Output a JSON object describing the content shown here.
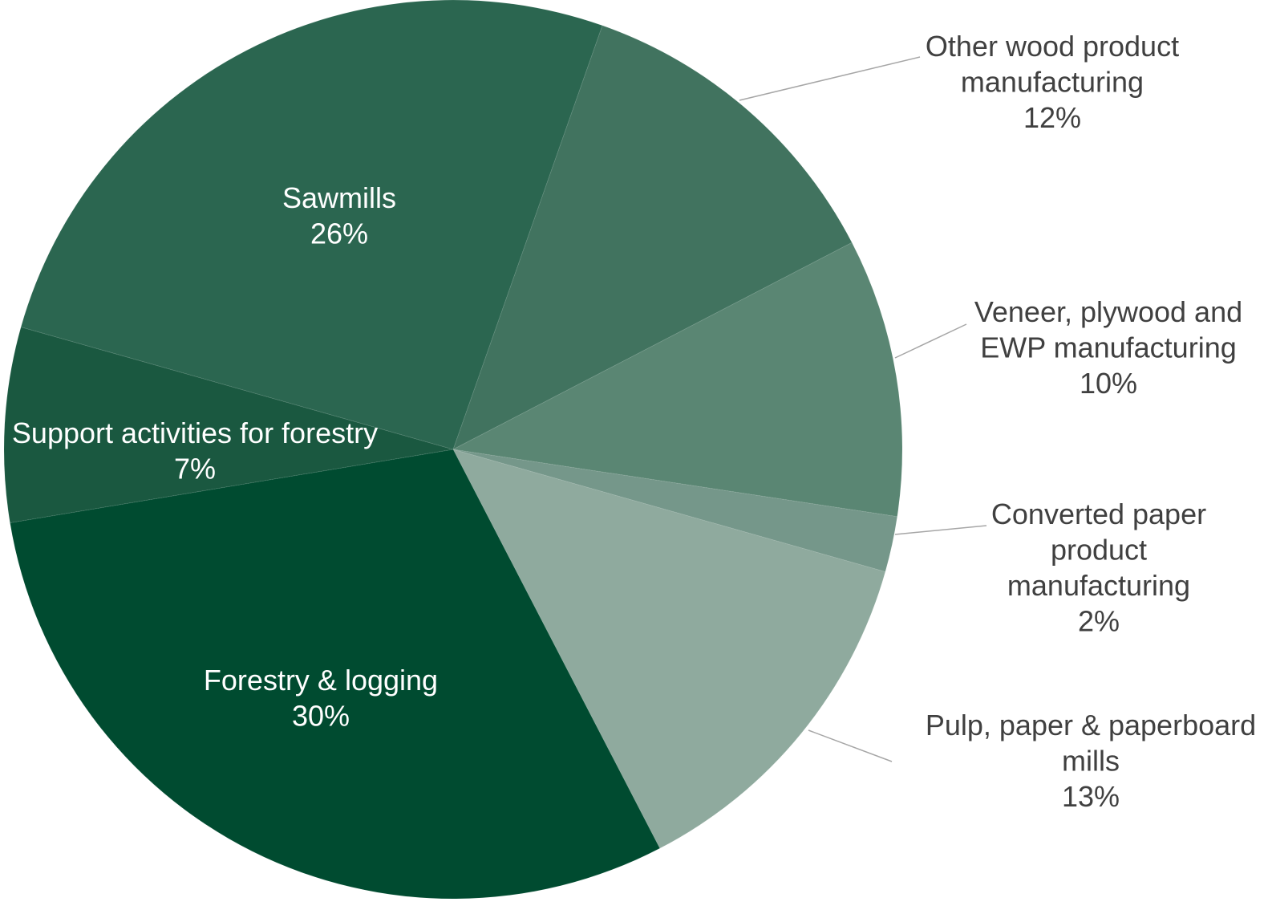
{
  "chart_data": {
    "type": "pie",
    "title": "",
    "legend": "none",
    "label_color_inside": "#ffffff",
    "label_color_outside": "#404040",
    "leader_line_color": "#a6a6a6",
    "slices": [
      {
        "label_lines": [
          "Other wood product",
          "manufacturing"
        ],
        "value": 12,
        "value_label": "12%",
        "color": "#41735F",
        "label_position": "outside"
      },
      {
        "label_lines": [
          "Veneer, plywood and",
          "EWP manufacturing"
        ],
        "value": 10,
        "value_label": "10%",
        "color": "#5A8673",
        "label_position": "outside"
      },
      {
        "label_lines": [
          "Converted paper",
          "product",
          "manufacturing"
        ],
        "value": 2,
        "value_label": "2%",
        "color": "#75978A",
        "label_position": "outside"
      },
      {
        "label_lines": [
          "Pulp, paper & paperboard",
          "mills"
        ],
        "value": 13,
        "value_label": "13%",
        "color": "#8FAA9E",
        "label_position": "outside"
      },
      {
        "label_lines": [
          "Forestry & logging"
        ],
        "value": 30,
        "value_label": "30%",
        "color": "#004B30",
        "label_position": "inside"
      },
      {
        "label_lines": [
          "Support activities for forestry"
        ],
        "value": 7,
        "value_label": "7%",
        "color": "#1A5840",
        "label_position": "inside"
      },
      {
        "label_lines": [
          "Sawmills"
        ],
        "value": 26,
        "value_label": "26%",
        "color": "#2B6650",
        "label_position": "inside"
      }
    ]
  }
}
